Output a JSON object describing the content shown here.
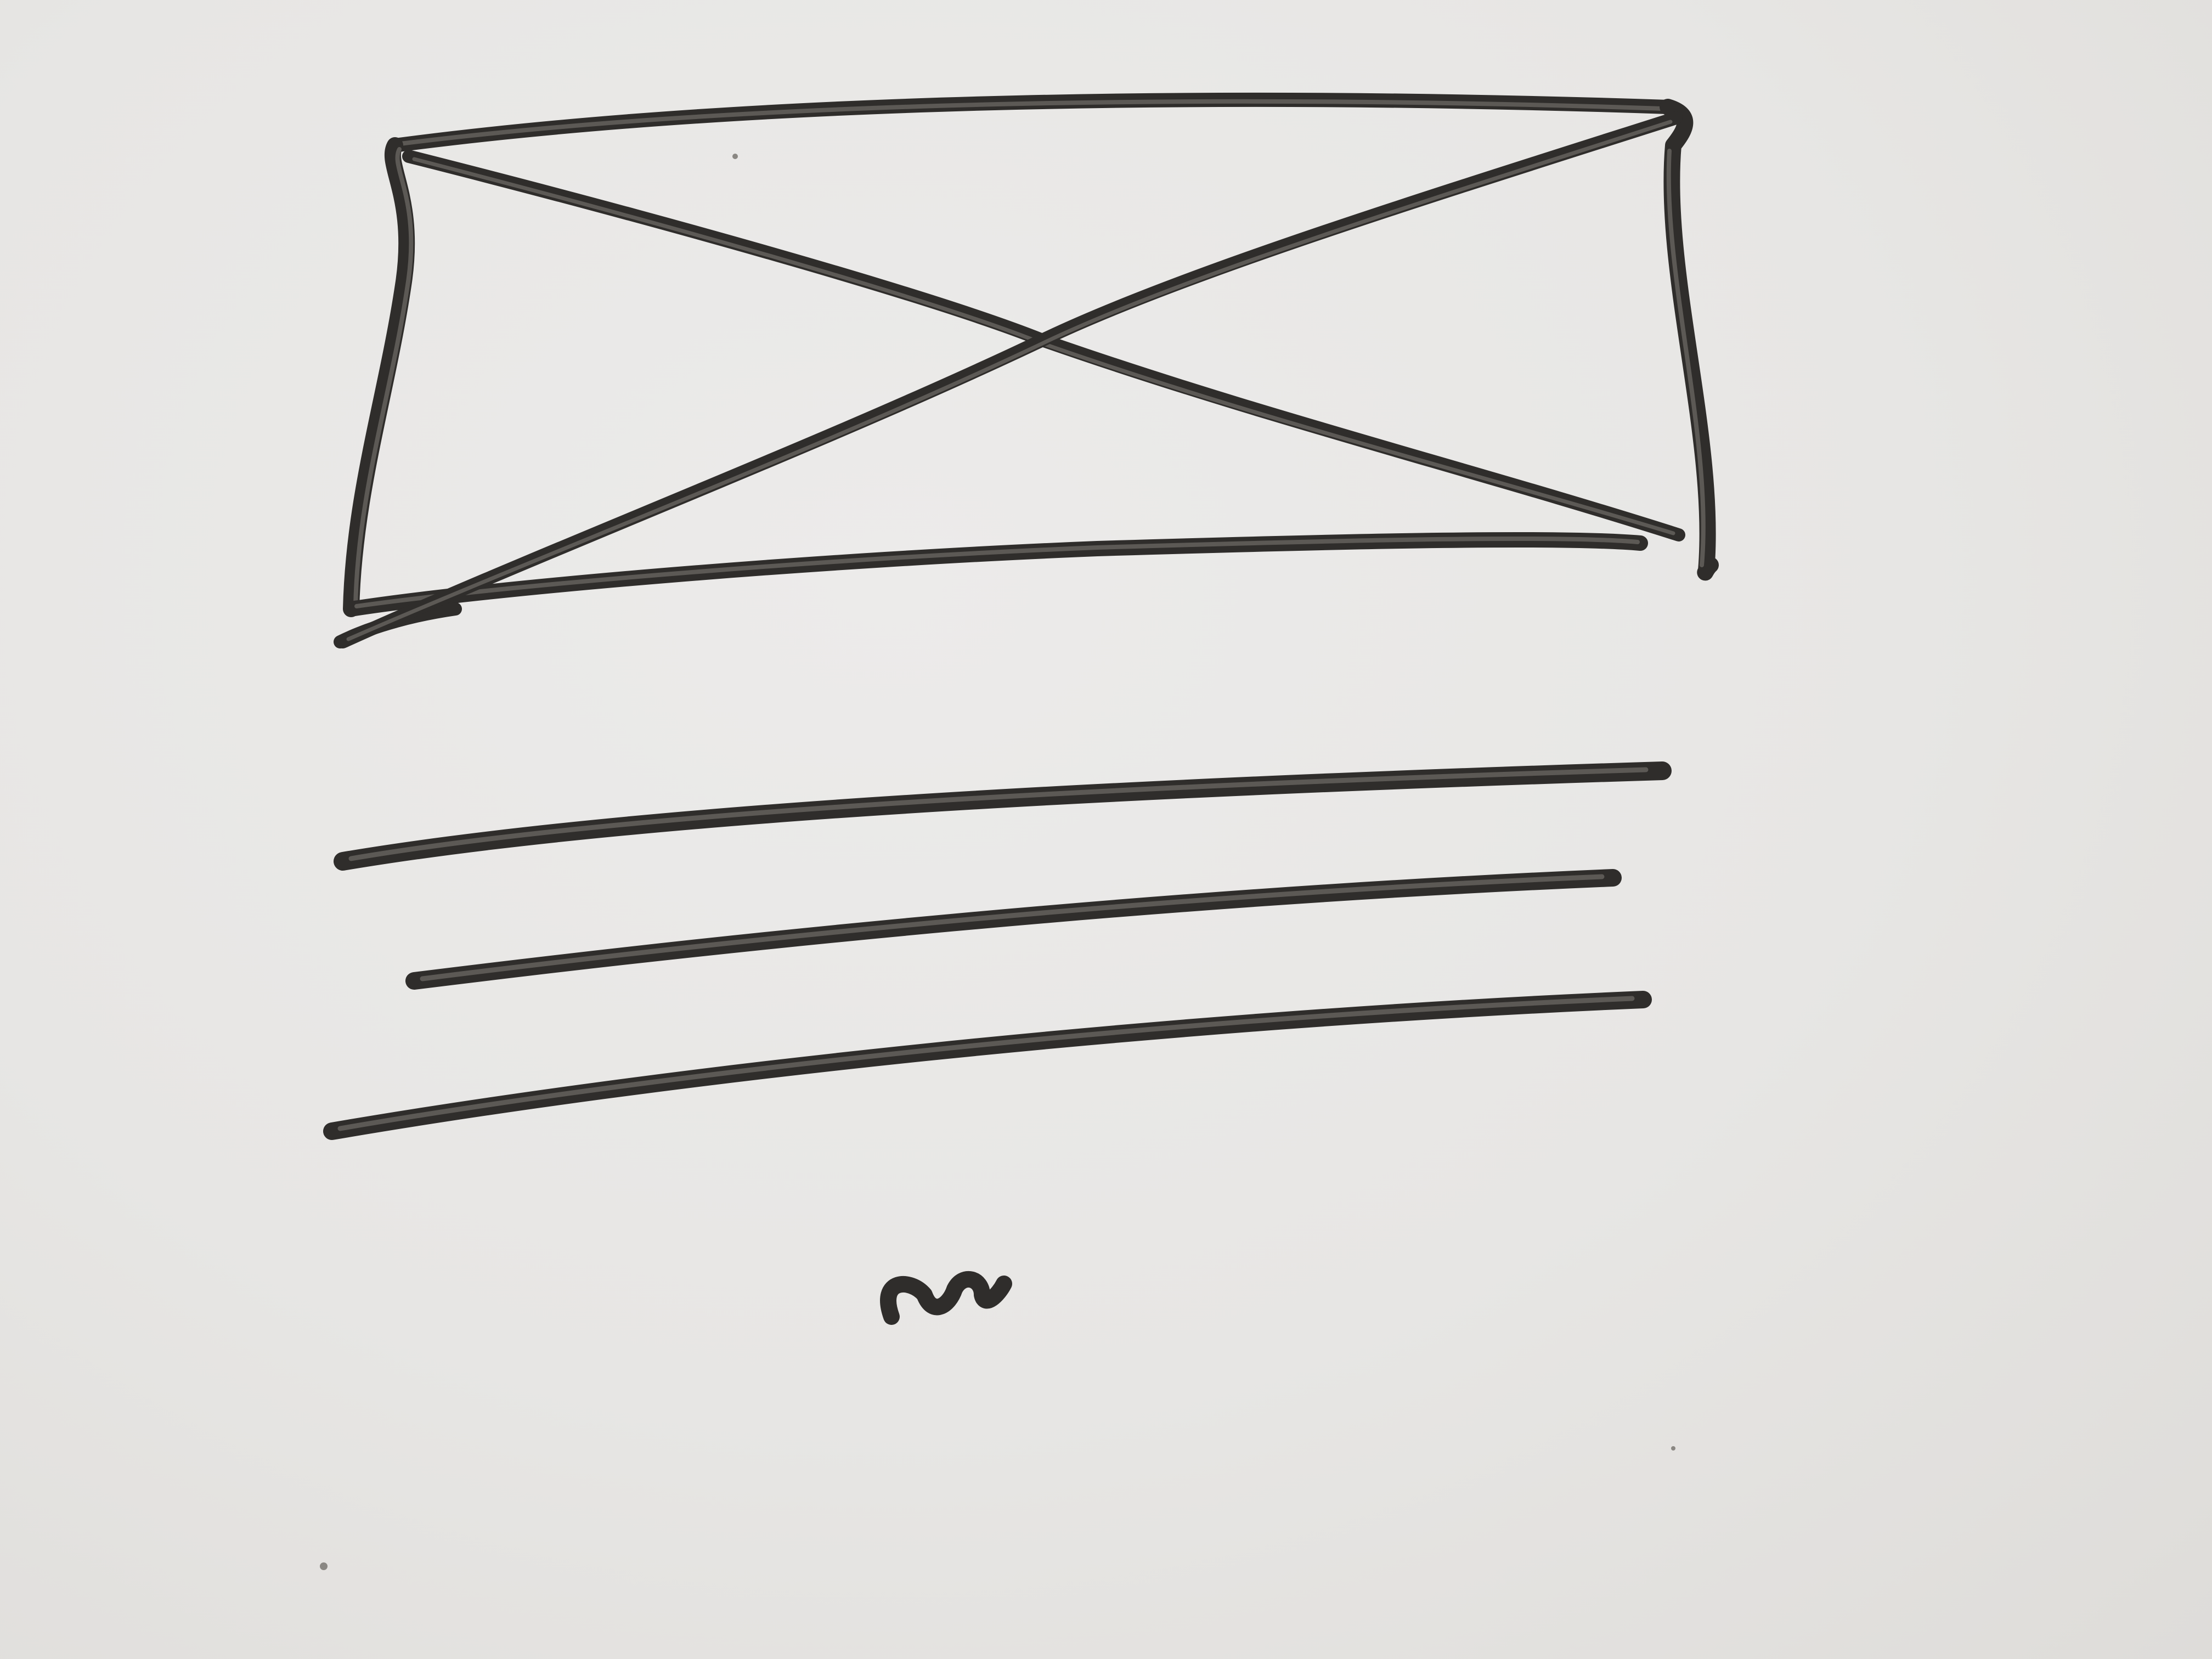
{
  "sketch": {
    "kind": "hand-drawn wireframe on paper",
    "elements": [
      "image-placeholder-box",
      "text-line-1",
      "text-line-2",
      "text-line-3",
      "squiggle"
    ]
  },
  "colors": {
    "paper": "#e8e7e5",
    "ink": "#2f2d2b",
    "ink_highlight": "#5c5955"
  }
}
